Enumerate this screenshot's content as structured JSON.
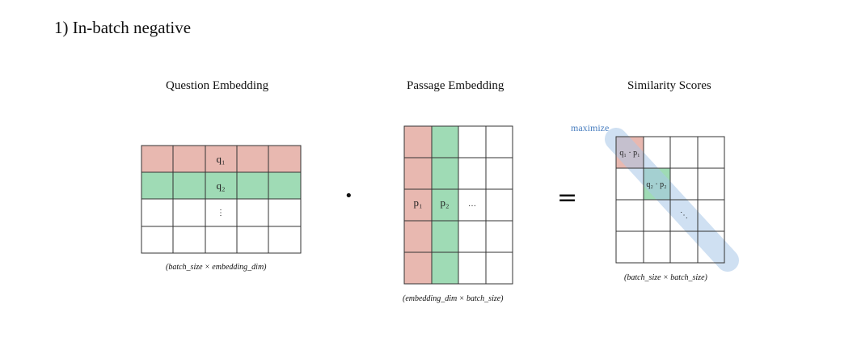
{
  "title": "1) In-batch negative",
  "question": {
    "label": "Question Embedding",
    "rows": [
      "q₁",
      "q₂",
      "⋮",
      ""
    ],
    "dims": "(batch_size × embedding_dim)"
  },
  "passage": {
    "label": "Passage Embedding",
    "cols": [
      "p₁",
      "p₂",
      "…",
      ""
    ],
    "dims": "(embedding_dim × batch_size)"
  },
  "similarity": {
    "label": "Similarity Scores",
    "diag": [
      "q₁ · p₁",
      "q₂ · p₂",
      "⋱",
      ""
    ],
    "dims": "(batch_size × batch_size)",
    "annotation": "maximize"
  },
  "operators": {
    "dot": "•",
    "equals": "="
  },
  "colors": {
    "red": "#e8b8b0",
    "green": "#9fdbb5",
    "blue_band": "#a9c8e8",
    "border": "#333333"
  }
}
